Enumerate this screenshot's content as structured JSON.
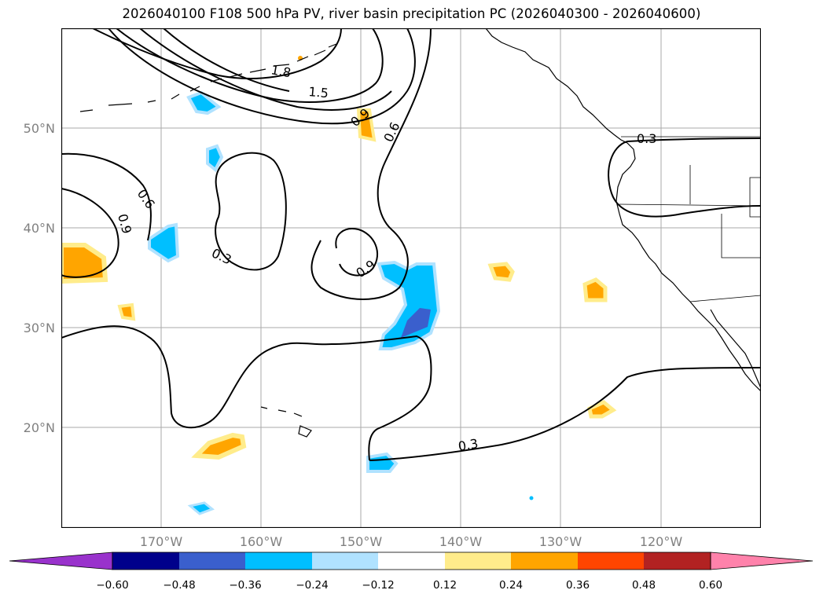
{
  "title": "2026040100 F108 500 hPa PV, river basin precipitation PC (2026040300 - 2026040600)",
  "map": {
    "projection": "plate-carree",
    "lon_range": [
      "180°",
      "110°W"
    ],
    "lat_range": [
      "10°N",
      "60°N"
    ],
    "gridlines": true,
    "lat_labels": [
      "50°N",
      "40°N",
      "30°N",
      "20°N"
    ],
    "lon_labels": [
      "170°W",
      "160°W",
      "150°W",
      "140°W",
      "130°W",
      "120°W"
    ],
    "contour_labels": [
      "1.8",
      "1.5",
      "0.9",
      "0.6",
      "0.6",
      "0.9",
      "0.3",
      "0.9",
      "0.3",
      "0.3"
    ],
    "contour_color": "#000000"
  },
  "colorbar": {
    "ticks": [
      "−0.60",
      "−0.48",
      "−0.36",
      "−0.24",
      "−0.12",
      "0.12",
      "0.24",
      "0.36",
      "0.48",
      "0.60"
    ],
    "colors": [
      "#9932cc",
      "#00008b",
      "#3a5fcd",
      "#00bfff",
      "#b0e2ff",
      "#ffffff",
      "#ffec8b",
      "#ffa500",
      "#ff4500",
      "#b22222",
      "#ff82ab"
    ]
  },
  "colors": {
    "pc_negative_light": "#00bfff",
    "pc_negative_dark": "#3a5fcd",
    "pc_negative_pale": "#b0e2ff",
    "pc_positive_light": "#ffec8b",
    "pc_positive": "#ffa500",
    "coast": "#000000",
    "grid": "#aaaaaa",
    "tick_label": "#808080"
  }
}
